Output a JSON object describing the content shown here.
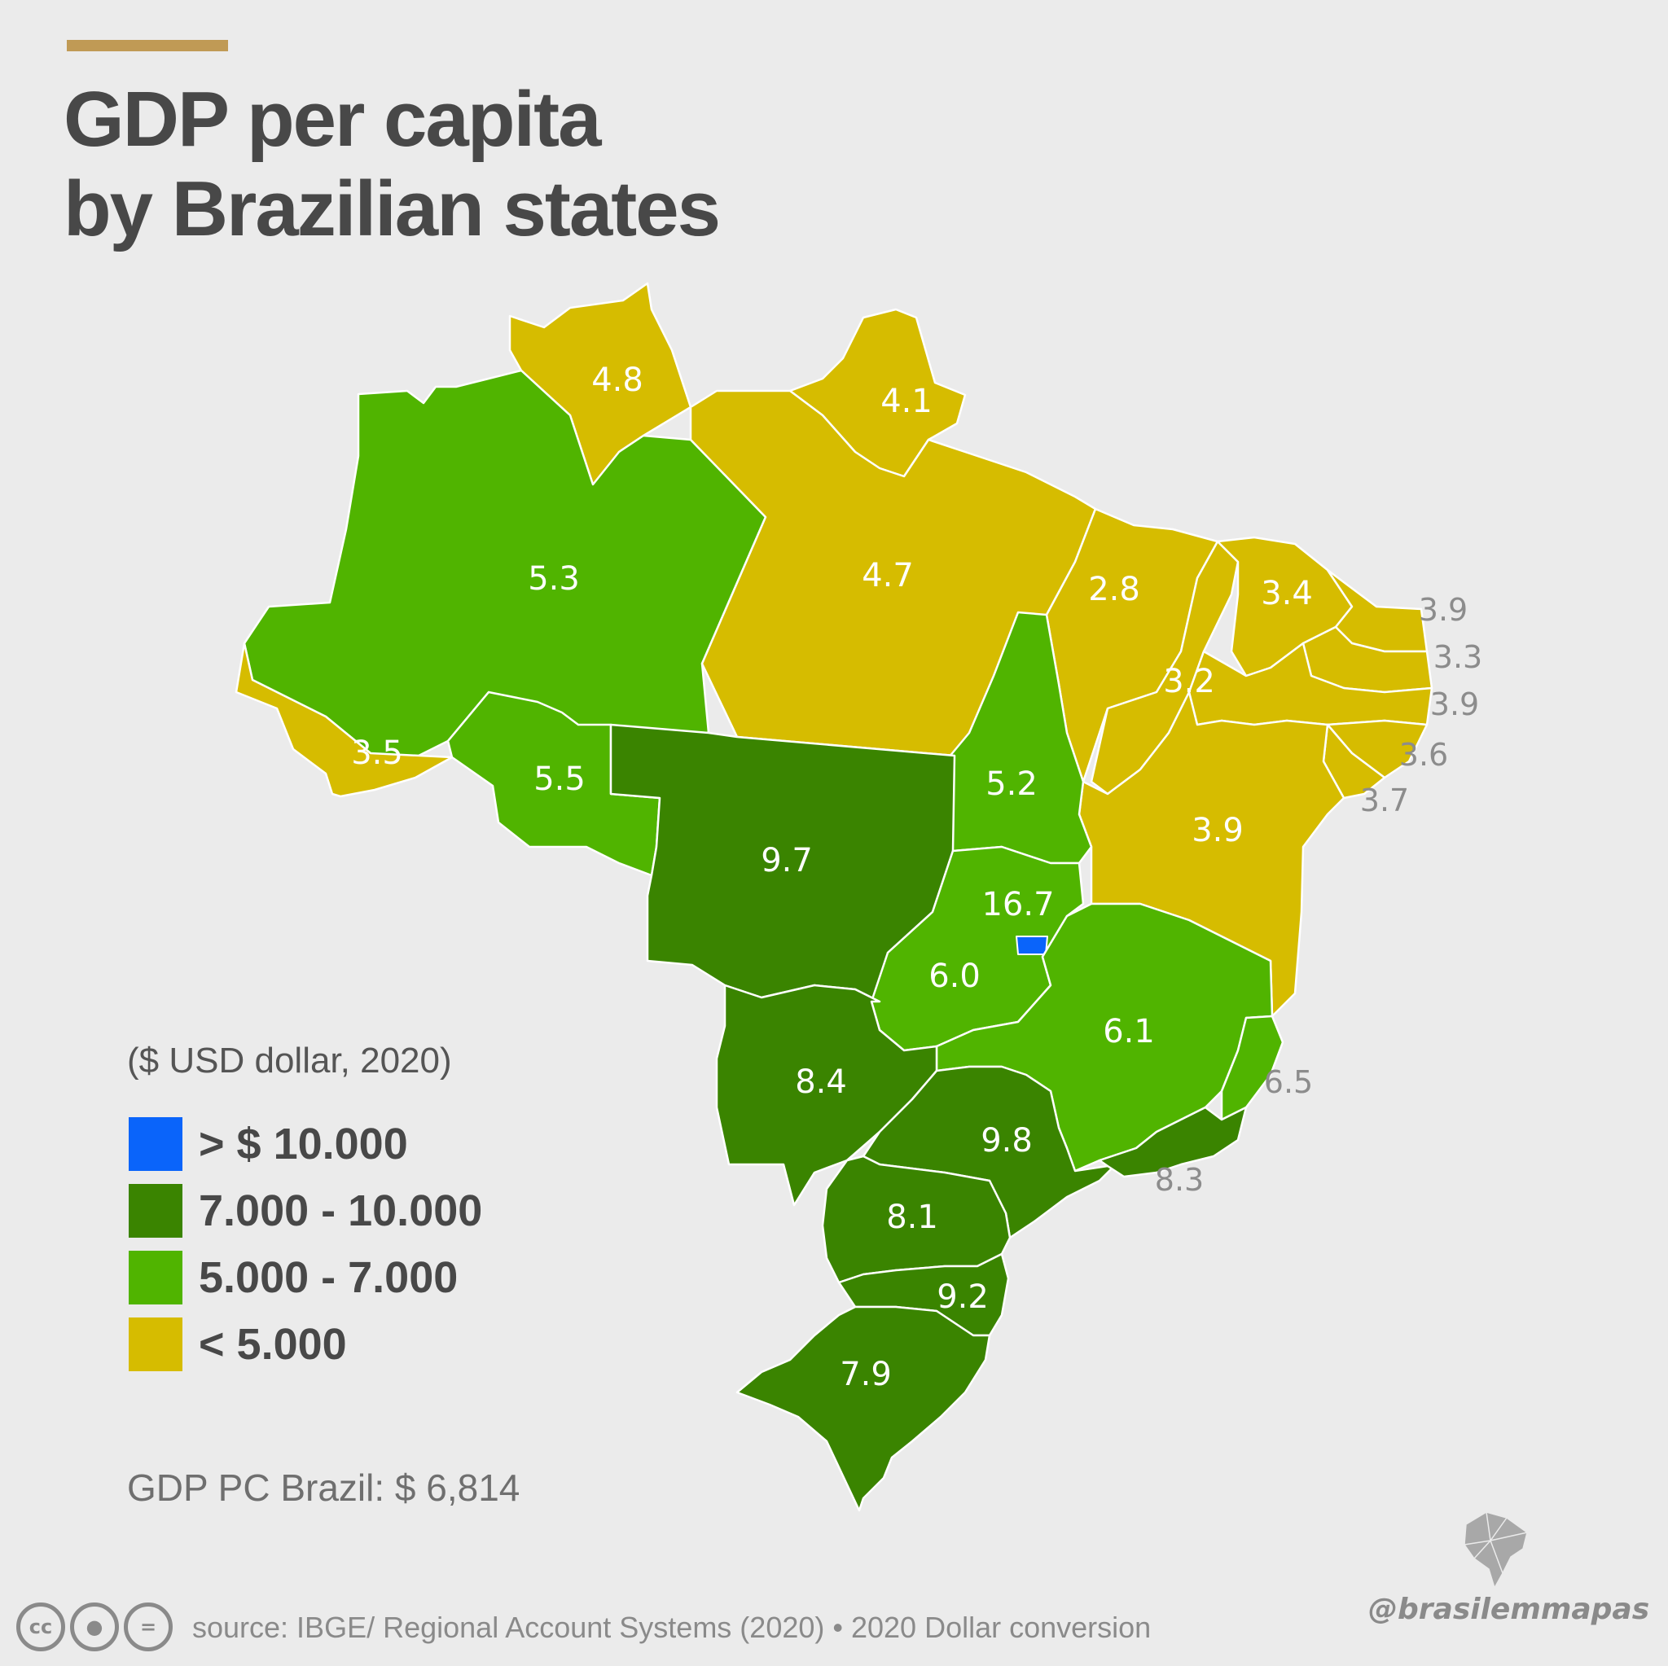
{
  "title_line1": "GDP per capita",
  "title_line2": "by Brazilian states",
  "units_note": "($ USD dollar, 2020)",
  "legend": [
    {
      "label": "> $ 10.000",
      "color": "#0a64fa"
    },
    {
      "label": "7.000 - 10.000",
      "color": "#3a8400"
    },
    {
      "label": "5.000 - 7.000",
      "color": "#50b400"
    },
    {
      "label": "< 5.000",
      "color": "#d6bc00"
    }
  ],
  "national_gdp": "GDP PC Brazil: $ 6,814",
  "source": "source: IBGE/ Regional Account Systems (2020) • 2020 Dollar conversion",
  "handle": "@brasilemmapas",
  "license_icons": [
    "cc-icon",
    "attribution-icon",
    "no-derivatives-icon"
  ],
  "chart_data": {
    "type": "choropleth",
    "title": "GDP per capita by Brazilian states",
    "unit": "$ USD dollar, 2020",
    "values": [
      "4.8",
      "4.1",
      "5.3",
      "4.7",
      "2.8",
      "3.4",
      "3.9",
      "3.3",
      "3.9",
      "3.6",
      "3.7",
      "3.2",
      "3.5",
      "5.5",
      "5.2",
      "3.9",
      "9.7",
      "16.7",
      "6.0",
      "6.1",
      "6.5",
      "8.4",
      "9.8",
      "8.3",
      "8.1",
      "9.2",
      "7.9"
    ]
  }
}
